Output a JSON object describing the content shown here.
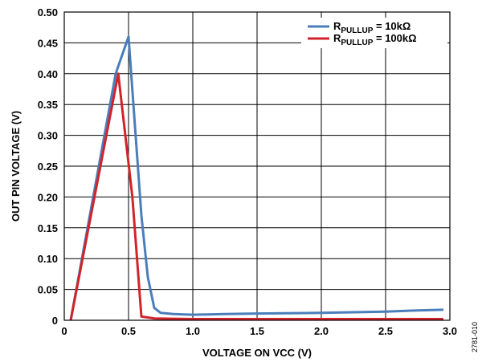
{
  "chart_data": {
    "type": "line",
    "xlabel": "VOLTAGE ON VCC (V)",
    "ylabel": "OUT PIN VOLTAGE (V)",
    "xlim": [
      0,
      3.0
    ],
    "ylim": [
      0,
      0.5
    ],
    "x_ticks": [
      "0",
      "0.5",
      "1.0",
      "1.5",
      "2.0",
      "2.5",
      "3.0"
    ],
    "y_ticks": [
      "0",
      "0.05",
      "0.10",
      "0.15",
      "0.20",
      "0.25",
      "0.30",
      "0.35",
      "0.40",
      "0.45",
      "0.50"
    ],
    "grid": true,
    "legend_position": "top-right",
    "series": [
      {
        "name_main": "R",
        "name_sub": "PULLUP",
        "name_rest": " = 10kΩ",
        "color": "#4a7ebb",
        "points": [
          [
            0.05,
            0.0
          ],
          [
            0.4,
            0.4
          ],
          [
            0.5,
            0.46
          ],
          [
            0.6,
            0.17
          ],
          [
            0.65,
            0.07
          ],
          [
            0.7,
            0.02
          ],
          [
            0.75,
            0.012
          ],
          [
            0.85,
            0.01
          ],
          [
            1.0,
            0.009
          ],
          [
            1.25,
            0.01
          ],
          [
            1.5,
            0.011
          ],
          [
            2.0,
            0.012
          ],
          [
            2.5,
            0.014
          ],
          [
            2.75,
            0.016
          ],
          [
            2.95,
            0.017
          ]
        ]
      },
      {
        "name_main": "R",
        "name_sub": "PULLUP",
        "name_rest": " = 100kΩ",
        "color": "#d2232a",
        "points": [
          [
            0.05,
            0.0
          ],
          [
            0.42,
            0.4
          ],
          [
            0.53,
            0.2
          ],
          [
            0.6,
            0.006
          ],
          [
            0.7,
            0.003
          ],
          [
            1.0,
            0.002
          ],
          [
            2.0,
            0.002
          ],
          [
            2.95,
            0.002
          ]
        ]
      }
    ]
  },
  "figure_id": "2781-010"
}
